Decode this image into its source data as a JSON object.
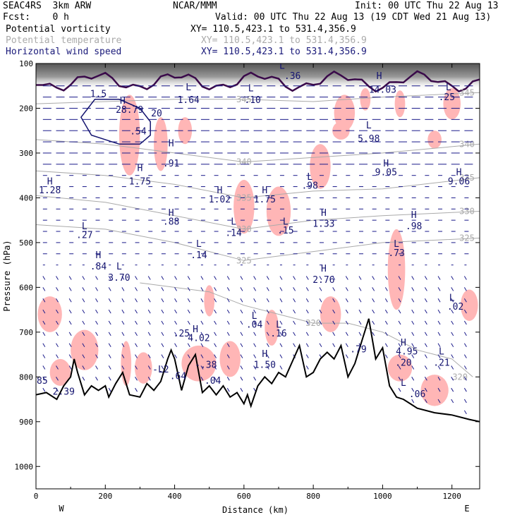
{
  "header": {
    "model": "SEAC4RS  3km ARW",
    "center": "NCAR/MMM",
    "init": "Init: 00 UTC Thu 22 Aug 13",
    "fcst": "Fcst:    0 h",
    "valid": "Valid: 00 UTC Thu 22 Aug 13 (19 CDT Wed 21 Aug 13)",
    "fields": [
      {
        "name": "Potential vorticity",
        "xy": "XY= 110.5,423.1 to 531.4,356.9"
      },
      {
        "name": "Potential temperature",
        "xy": "XY= 110.5,423.1 to 531.4,356.9"
      },
      {
        "name": "Horizontal wind speed",
        "xy": "XY= 110.5,423.1 to 531.4,356.9"
      }
    ]
  },
  "chart_data": {
    "type": "cross-section",
    "xlabel": "Distance (km)",
    "ylabel": "Pressure (hPa)",
    "xlim": [
      0,
      1280
    ],
    "ylim": [
      1050,
      100
    ],
    "x_ticks": [
      0,
      200,
      400,
      600,
      800,
      1000,
      1200
    ],
    "y_ticks": [
      100,
      200,
      300,
      400,
      500,
      600,
      700,
      800,
      900,
      1000
    ],
    "left_end": "W",
    "right_end": "E",
    "colors": {
      "pv_shade": "#ffb6b6",
      "wind": "#1a1a8a",
      "theta": "#aaaaaa",
      "terrain": "#000000"
    },
    "terrain": {
      "x": [
        0,
        30,
        60,
        80,
        100,
        110,
        120,
        140,
        160,
        180,
        200,
        210,
        230,
        250,
        270,
        300,
        320,
        340,
        360,
        380,
        390,
        400,
        420,
        440,
        460,
        480,
        500,
        520,
        540,
        560,
        580,
        600,
        610,
        620,
        640,
        660,
        680,
        700,
        720,
        740,
        760,
        780,
        800,
        820,
        840,
        860,
        880,
        900,
        920,
        940,
        960,
        980,
        1000,
        1020,
        1040,
        1060,
        1080,
        1100,
        1150,
        1200,
        1250,
        1280
      ],
      "p": [
        840,
        835,
        850,
        820,
        800,
        760,
        790,
        840,
        820,
        830,
        820,
        845,
        815,
        790,
        840,
        845,
        815,
        830,
        810,
        760,
        740,
        760,
        830,
        775,
        750,
        835,
        820,
        840,
        820,
        845,
        835,
        860,
        840,
        865,
        820,
        800,
        815,
        790,
        800,
        765,
        730,
        800,
        790,
        760,
        745,
        760,
        730,
        800,
        770,
        720,
        670,
        760,
        735,
        820,
        845,
        850,
        860,
        870,
        880,
        885,
        895,
        900
      ]
    },
    "theta": [
      {
        "label": "345",
        "x": [
          0,
          200,
          400,
          600,
          800,
          1000,
          1280
        ],
        "p": [
          190,
          185,
          180,
          180,
          185,
          175,
          165
        ]
      },
      {
        "label": "340",
        "x": [
          0,
          200,
          400,
          600,
          800,
          1000,
          1280
        ],
        "p": [
          270,
          280,
          300,
          320,
          310,
          300,
          280
        ]
      },
      {
        "label": "335",
        "x": [
          0,
          200,
          400,
          600,
          800,
          1000,
          1280
        ],
        "p": [
          340,
          350,
          370,
          400,
          385,
          380,
          355
        ]
      },
      {
        "label": "330",
        "x": [
          0,
          200,
          400,
          600,
          800,
          1000,
          1280
        ],
        "p": [
          395,
          410,
          440,
          470,
          450,
          440,
          430
        ]
      },
      {
        "label": "325",
        "x": [
          0,
          200,
          400,
          600,
          800,
          1000,
          1280
        ],
        "p": [
          460,
          470,
          500,
          540,
          520,
          500,
          490
        ]
      },
      {
        "label": "320",
        "x": [
          300,
          400,
          500,
          600,
          700,
          800,
          900,
          1000,
          1100,
          1200,
          1260
        ],
        "p": [
          590,
          600,
          610,
          640,
          660,
          680,
          680,
          700,
          740,
          760,
          800
        ]
      }
    ],
    "pv_patches": [
      {
        "x": 270,
        "p": 260,
        "w": 60,
        "h": 180
      },
      {
        "x": 360,
        "p": 280,
        "w": 40,
        "h": 120
      },
      {
        "x": 430,
        "p": 250,
        "w": 40,
        "h": 60
      },
      {
        "x": 600,
        "p": 420,
        "w": 60,
        "h": 120
      },
      {
        "x": 700,
        "p": 430,
        "w": 70,
        "h": 110
      },
      {
        "x": 820,
        "p": 330,
        "w": 60,
        "h": 100
      },
      {
        "x": 890,
        "p": 210,
        "w": 60,
        "h": 80
      },
      {
        "x": 950,
        "p": 180,
        "w": 30,
        "h": 50
      },
      {
        "x": 1050,
        "p": 190,
        "w": 30,
        "h": 60
      },
      {
        "x": 1200,
        "p": 190,
        "w": 50,
        "h": 70
      },
      {
        "x": 1040,
        "p": 560,
        "w": 50,
        "h": 180
      },
      {
        "x": 1050,
        "p": 780,
        "w": 70,
        "h": 60
      },
      {
        "x": 1150,
        "p": 830,
        "w": 80,
        "h": 70
      },
      {
        "x": 1250,
        "p": 640,
        "w": 50,
        "h": 70
      },
      {
        "x": 40,
        "p": 660,
        "w": 70,
        "h": 80
      },
      {
        "x": 70,
        "p": 790,
        "w": 60,
        "h": 60
      },
      {
        "x": 140,
        "p": 740,
        "w": 80,
        "h": 90
      },
      {
        "x": 260,
        "p": 770,
        "w": 30,
        "h": 100
      },
      {
        "x": 310,
        "p": 780,
        "w": 50,
        "h": 70
      },
      {
        "x": 470,
        "p": 770,
        "w": 100,
        "h": 80
      },
      {
        "x": 560,
        "p": 760,
        "w": 60,
        "h": 80
      },
      {
        "x": 680,
        "p": 690,
        "w": 40,
        "h": 80
      },
      {
        "x": 850,
        "p": 660,
        "w": 60,
        "h": 80
      },
      {
        "x": 500,
        "p": 630,
        "w": 30,
        "h": 70
      },
      {
        "x": 880,
        "p": 250,
        "w": 50,
        "h": 40
      },
      {
        "x": 1150,
        "p": 270,
        "w": 40,
        "h": 40
      }
    ],
    "wind_speed_contour": {
      "label": "20",
      "x": [
        150,
        130,
        160,
        240,
        300,
        330,
        330,
        300,
        240,
        170,
        150
      ],
      "p": [
        200,
        220,
        260,
        280,
        280,
        260,
        230,
        200,
        180,
        180,
        200
      ]
    },
    "annotations": [
      {
        "text": "1.5",
        "x": 180,
        "p": 175
      },
      {
        "text": "H",
        "x": 250,
        "p": 190
      },
      {
        "text": "28.79",
        "x": 270,
        "p": 210
      },
      {
        "text": "20",
        "x": 348,
        "p": 218
      },
      {
        "text": ".54",
        "x": 295,
        "p": 258
      },
      {
        "text": "1.64",
        "x": 440,
        "p": 188
      },
      {
        "text": "L",
        "x": 440,
        "p": 160
      },
      {
        "text": ".36",
        "x": 740,
        "p": 135
      },
      {
        "text": "L",
        "x": 710,
        "p": 112
      },
      {
        "text": ".10",
        "x": 625,
        "p": 188
      },
      {
        "text": "L",
        "x": 620,
        "p": 162
      },
      {
        "text": "14.03",
        "x": 1000,
        "p": 165
      },
      {
        "text": "H",
        "x": 990,
        "p": 135
      },
      {
        "text": ".25",
        "x": 1185,
        "p": 182
      },
      {
        "text": "L",
        "x": 1190,
        "p": 160
      },
      {
        "text": "L",
        "x": 960,
        "p": 245
      },
      {
        "text": "5.98",
        "x": 960,
        "p": 275
      },
      {
        "text": "H",
        "x": 390,
        "p": 285
      },
      {
        "text": ".91",
        "x": 390,
        "p": 330
      },
      {
        "text": "H",
        "x": 300,
        "p": 340
      },
      {
        "text": "1.75",
        "x": 300,
        "p": 370
      },
      {
        "text": "H",
        "x": 1010,
        "p": 330
      },
      {
        "text": "9.05",
        "x": 1010,
        "p": 350
      },
      {
        "text": "H",
        "x": 1220,
        "p": 350
      },
      {
        "text": "9.06",
        "x": 1220,
        "p": 370
      },
      {
        "text": "H",
        "x": 40,
        "p": 370
      },
      {
        "text": "1.28",
        "x": 40,
        "p": 390
      },
      {
        "text": "L",
        "x": 790,
        "p": 360
      },
      {
        "text": ".98",
        "x": 790,
        "p": 380
      },
      {
        "text": "H",
        "x": 530,
        "p": 390
      },
      {
        "text": "1.02",
        "x": 530,
        "p": 410
      },
      {
        "text": "H",
        "x": 660,
        "p": 390
      },
      {
        "text": "1.75",
        "x": 660,
        "p": 410
      },
      {
        "text": "H",
        "x": 390,
        "p": 440
      },
      {
        "text": ".88",
        "x": 390,
        "p": 460
      },
      {
        "text": "H",
        "x": 830,
        "p": 440
      },
      {
        "text": "1.33",
        "x": 830,
        "p": 465
      },
      {
        "text": "L",
        "x": 570,
        "p": 460
      },
      {
        "text": ".14",
        "x": 570,
        "p": 485
      },
      {
        "text": "L",
        "x": 720,
        "p": 460
      },
      {
        "text": ".15",
        "x": 720,
        "p": 480
      },
      {
        "text": "H",
        "x": 1090,
        "p": 445
      },
      {
        "text": ".98",
        "x": 1090,
        "p": 470
      },
      {
        "text": "L",
        "x": 140,
        "p": 470
      },
      {
        "text": ".27",
        "x": 140,
        "p": 490
      },
      {
        "text": "L",
        "x": 1040,
        "p": 510
      },
      {
        "text": ".73",
        "x": 1040,
        "p": 530
      },
      {
        "text": "L",
        "x": 470,
        "p": 510
      },
      {
        "text": ".14",
        "x": 470,
        "p": 535
      },
      {
        "text": "H",
        "x": 180,
        "p": 535
      },
      {
        "text": ".84",
        "x": 180,
        "p": 560
      },
      {
        "text": "L",
        "x": 240,
        "p": 560
      },
      {
        "text": "3.70",
        "x": 240,
        "p": 585
      },
      {
        "text": "H",
        "x": 830,
        "p": 565
      },
      {
        "text": "2.76",
        "x": 830,
        "p": 590
      },
      {
        "text": "L",
        "x": 1200,
        "p": 630
      },
      {
        "text": ".02",
        "x": 1210,
        "p": 650
      },
      {
        "text": "L",
        "x": 630,
        "p": 670
      },
      {
        "text": ".04",
        "x": 630,
        "p": 690
      },
      {
        "text": "L",
        "x": 700,
        "p": 690
      },
      {
        "text": ".16",
        "x": 700,
        "p": 710
      },
      {
        "text": "H",
        "x": 460,
        "p": 700
      },
      {
        "text": "4.02",
        "x": 470,
        "p": 720
      },
      {
        "text": ".25",
        "x": 420,
        "p": 710
      },
      {
        "text": "H",
        "x": 1060,
        "p": 730
      },
      {
        "text": "4.95",
        "x": 1070,
        "p": 750
      },
      {
        "text": "L",
        "x": 1170,
        "p": 750
      },
      {
        "text": ".21",
        "x": 1170,
        "p": 775
      },
      {
        "text": "H",
        "x": 660,
        "p": 755
      },
      {
        "text": "1.50",
        "x": 660,
        "p": 780
      },
      {
        "text": "-.38",
        "x": 490,
        "p": 780
      },
      {
        "text": ".20",
        "x": 1060,
        "p": 775
      },
      {
        "text": "L",
        "x": 360,
        "p": 790
      },
      {
        "text": "-.2",
        "x": 360,
        "p": 790
      },
      {
        "text": ".64",
        "x": 410,
        "p": 805
      },
      {
        "text": ".04",
        "x": 510,
        "p": 815
      },
      {
        "text": "L",
        "x": 1060,
        "p": 820
      },
      {
        "text": ".06",
        "x": 1100,
        "p": 845
      },
      {
        "text": "2.39",
        "x": 80,
        "p": 840
      },
      {
        "text": ".85",
        "x": 10,
        "p": 815
      },
      {
        "text": ".79",
        "x": 930,
        "p": 745
      }
    ]
  }
}
